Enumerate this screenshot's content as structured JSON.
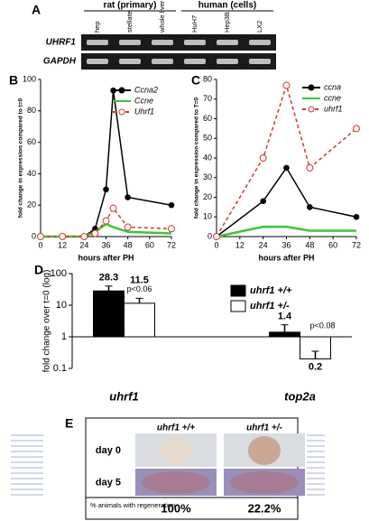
{
  "panel_labels": [
    "A",
    "B",
    "C",
    "D",
    "E"
  ],
  "gel": {
    "groups": [
      "rat (primary)",
      "human (cells)"
    ],
    "lanes": [
      "hep",
      "stellate",
      "whole liver",
      "HuH7",
      "Hep3B",
      "LX2"
    ],
    "rows": [
      "UHRF1",
      "GAPDH"
    ]
  },
  "chart_data": [
    {
      "type": "line",
      "y_label": "fold change in expression compared to t=0",
      "x_label": "hours after PH",
      "x": [
        0,
        12,
        24,
        30,
        36,
        40,
        48,
        72
      ],
      "xlim": [
        0,
        72
      ],
      "xticks": [
        0,
        12,
        24,
        36,
        48,
        60,
        72
      ],
      "ylim": [
        0,
        100
      ],
      "yticks": [
        0,
        20,
        40,
        60,
        80,
        100
      ],
      "series": [
        {
          "name": "Ccna2",
          "color": "#000000",
          "line_style": "solid",
          "marker": "filled",
          "values": [
            0,
            0,
            0,
            5,
            30,
            93,
            25,
            20
          ]
        },
        {
          "name": "Ccne",
          "color": "#33cc33",
          "line_style": "solid",
          "marker": "none",
          "values": [
            0,
            0,
            0,
            3,
            8,
            6,
            3,
            2
          ]
        },
        {
          "name": "Uhrf1",
          "color": "#e03030",
          "line_style": "dashed",
          "marker": "open",
          "values": [
            0,
            0,
            0,
            2,
            10,
            18,
            6,
            5
          ]
        }
      ]
    },
    {
      "type": "line",
      "y_label": "fold change in expression compared to T=0",
      "x_label": "hours after PH",
      "x": [
        0,
        24,
        36,
        48,
        72
      ],
      "xlim": [
        0,
        72
      ],
      "xticks": [
        0,
        12,
        24,
        36,
        48,
        60,
        72
      ],
      "ylim": [
        0,
        80
      ],
      "yticks": [
        0,
        10,
        20,
        30,
        40,
        50,
        60,
        70,
        80
      ],
      "series": [
        {
          "name": "ccna",
          "color": "#000000",
          "line_style": "solid",
          "marker": "filled",
          "values": [
            0,
            18,
            35,
            15,
            10
          ]
        },
        {
          "name": "ccne",
          "color": "#33cc33",
          "line_style": "solid",
          "marker": "none",
          "values": [
            0,
            5,
            5,
            3,
            3
          ]
        },
        {
          "name": "uhrf1",
          "color": "#e03030",
          "line_style": "dashed",
          "marker": "open",
          "values": [
            0,
            40,
            77,
            35,
            55
          ]
        }
      ]
    },
    {
      "type": "bar",
      "log_scale": true,
      "y_label": "fold change over t=0 (log)",
      "categories": [
        "uhrf1",
        "top2a"
      ],
      "ylim": [
        0.1,
        100
      ],
      "yticks": [
        0.1,
        1,
        10,
        100
      ],
      "annotations": [
        "p<0.06",
        "p<0.08"
      ],
      "series": [
        {
          "name": "uhrf1 +/+",
          "color": "#000000",
          "values": [
            28.3,
            1.4
          ],
          "errors": [
            12,
            1
          ]
        },
        {
          "name": "uhrf1 +/-",
          "color": "#ffffff",
          "values": [
            11.5,
            0.2
          ],
          "errors": [
            5,
            0.15
          ]
        }
      ]
    }
  ],
  "photos": {
    "columns": [
      "uhrf1 +/+",
      "uhrf1 +/-"
    ],
    "rows": [
      "day 0",
      "day 5"
    ],
    "footer_label": "% animals with regeneration",
    "footer_values": [
      "100%",
      "22.2%"
    ]
  }
}
